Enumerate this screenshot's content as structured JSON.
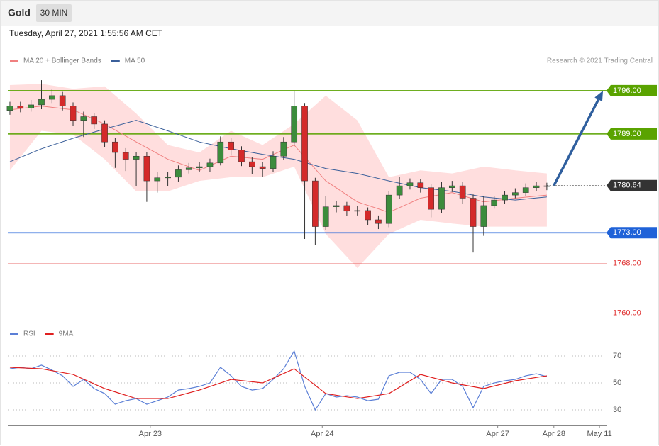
{
  "chart_data": [
    {
      "type": "candlestick",
      "title": "Gold",
      "timeframe": "30 MIN",
      "subtitle": "Tuesday, April 27, 2021 1:55:56 AM CET",
      "source": "Research © 2021 Trading Central",
      "x": [
        0,
        3,
        6,
        9,
        12,
        15,
        18,
        21,
        24,
        27,
        30,
        33,
        36,
        39,
        42,
        45,
        48,
        51,
        54,
        57,
        60,
        63,
        66,
        69,
        72,
        75,
        78,
        81,
        84,
        87,
        90,
        93,
        96,
        99,
        102,
        105,
        108,
        111,
        114,
        117,
        120,
        123,
        126,
        129,
        132,
        135,
        138,
        141,
        144,
        147,
        150,
        153
      ],
      "open": [
        1792.8,
        1793.5,
        1793.2,
        1793.7,
        1794.6,
        1795.2,
        1793.5,
        1791.2,
        1791.8,
        1790.6,
        1787.7,
        1786.0,
        1784.9,
        1785.4,
        1781.4,
        1781.9,
        1782.0,
        1783.2,
        1783.5,
        1783.7,
        1784.3,
        1787.7,
        1786.4,
        1784.5,
        1783.7,
        1783.4,
        1785.4,
        1787.7,
        1793.5,
        1781.4,
        1774.0,
        1777.2,
        1777.4,
        1776.5,
        1776.6,
        1775.1,
        1774.5,
        1779.1,
        1780.6,
        1781.1,
        1780.3,
        1776.8,
        1780.3,
        1780.6,
        1778.6,
        1774.0,
        1777.4,
        1778.3,
        1779.1,
        1779.5,
        1780.3,
        1780.6
      ],
      "high": [
        1794.2,
        1794.2,
        1794.5,
        1797.7,
        1796.2,
        1795.8,
        1794.1,
        1792.6,
        1792.4,
        1791.2,
        1788.3,
        1786.7,
        1786.1,
        1786.0,
        1782.8,
        1782.9,
        1783.9,
        1784.3,
        1784.4,
        1785.0,
        1788.6,
        1788.3,
        1787.0,
        1785.2,
        1784.4,
        1786.2,
        1788.5,
        1796.0,
        1794.0,
        1781.9,
        1778.9,
        1778.2,
        1778.0,
        1777.3,
        1777.1,
        1775.8,
        1779.8,
        1782.0,
        1781.8,
        1781.7,
        1780.9,
        1781.2,
        1781.4,
        1781.2,
        1779.2,
        1779.0,
        1779.0,
        1779.8,
        1780.2,
        1781.0,
        1781.2,
        1781.1
      ],
      "low": [
        1792.1,
        1792.5,
        1792.6,
        1793.0,
        1794.0,
        1792.8,
        1790.3,
        1788.5,
        1789.8,
        1786.9,
        1783.5,
        1783.0,
        1780.5,
        1778.0,
        1779.5,
        1780.6,
        1781.3,
        1782.6,
        1782.8,
        1782.9,
        1783.9,
        1785.6,
        1783.8,
        1782.5,
        1782.1,
        1782.9,
        1784.8,
        1787.1,
        1772.0,
        1771.0,
        1773.4,
        1776.3,
        1775.7,
        1775.8,
        1774.2,
        1773.6,
        1773.9,
        1778.5,
        1780.0,
        1779.5,
        1775.5,
        1776.2,
        1779.6,
        1777.7,
        1769.8,
        1772.5,
        1776.9,
        1777.7,
        1778.6,
        1778.9,
        1779.8,
        1779.9
      ],
      "close": [
        1793.5,
        1793.2,
        1793.7,
        1794.6,
        1795.2,
        1793.5,
        1791.2,
        1791.8,
        1790.6,
        1787.7,
        1786.0,
        1784.9,
        1785.4,
        1781.4,
        1781.9,
        1782.0,
        1783.2,
        1783.5,
        1783.7,
        1784.3,
        1787.7,
        1786.4,
        1784.5,
        1783.7,
        1783.4,
        1785.4,
        1787.7,
        1793.5,
        1781.4,
        1774.0,
        1777.2,
        1777.4,
        1776.5,
        1776.6,
        1775.1,
        1774.5,
        1779.1,
        1780.6,
        1781.1,
        1780.3,
        1776.8,
        1780.3,
        1780.6,
        1778.6,
        1774.0,
        1777.4,
        1778.3,
        1779.1,
        1779.5,
        1780.3,
        1780.6,
        1780.6
      ],
      "up_color": "#3c8c3c",
      "down_color": "#d42a2a",
      "overlay_x": [
        0,
        9,
        18,
        27,
        36,
        45,
        54,
        63,
        72,
        81,
        90,
        99,
        108,
        117,
        126,
        135,
        144,
        153
      ],
      "overlays": [
        {
          "name": "MA 20 + Bollinger Bands",
          "color": "#f08080",
          "band_color": "#ffdede",
          "values": [
            1792.9,
            1793.5,
            1792.9,
            1790.6,
            1787.7,
            1784.9,
            1783.1,
            1785.4,
            1784.9,
            1787.2,
            1781.4,
            1778.0,
            1776.3,
            1778.6,
            1779.5,
            1778.0,
            1778.6,
            1779.1
          ],
          "upper": [
            1796.9,
            1797.1,
            1796.3,
            1796.7,
            1792.3,
            1787.2,
            1786.0,
            1789.5,
            1787.2,
            1790.6,
            1795.2,
            1791.2,
            1782.0,
            1783.1,
            1782.6,
            1783.7,
            1783.1,
            1782.6
          ],
          "lower": [
            1783.1,
            1789.5,
            1788.9,
            1784.9,
            1779.7,
            1779.7,
            1781.4,
            1782.0,
            1782.0,
            1783.7,
            1772.8,
            1767.3,
            1772.8,
            1775.1,
            1774.5,
            1774.0,
            1774.0,
            1774.0
          ]
        },
        {
          "name": "MA 50",
          "color": "#3a5f9a",
          "values": [
            1784.5,
            1786.6,
            1788.3,
            1789.8,
            1791.2,
            1789.5,
            1787.7,
            1786.6,
            1785.7,
            1784.9,
            1783.4,
            1782.6,
            1781.4,
            1780.3,
            1779.7,
            1778.8,
            1778.3,
            1778.8
          ]
        }
      ],
      "levels": [
        {
          "value": 1796,
          "label": "1796.00",
          "color": "#5aa300",
          "tag": true,
          "line": "solid"
        },
        {
          "value": 1789,
          "label": "1789.00",
          "color": "#5aa300",
          "tag": true,
          "line": "solid"
        },
        {
          "value": 1780.64,
          "label": "1780.64",
          "color": "#333333",
          "tag": true,
          "line": "dotted"
        },
        {
          "value": 1773,
          "label": "1773.00",
          "color": "#1f62d8",
          "tag": true,
          "line": "solid"
        },
        {
          "value": 1768,
          "label": "1768.00",
          "color": "#e03030",
          "tag": false,
          "line": "thin"
        },
        {
          "value": 1760,
          "label": "1760.00",
          "color": "#e03030",
          "tag": false,
          "line": "thin"
        }
      ],
      "arrow": {
        "x": [
          155,
          169
        ],
        "y": [
          1780.64,
          1796
        ],
        "color": "#2f5f9e"
      },
      "xlim": [
        -0.6,
        170
      ],
      "ylim": [
        1758.8,
        1799.2
      ]
    },
    {
      "type": "line",
      "series": [
        {
          "name": "RSI",
          "color": "#5b7fd6",
          "x": [
            0,
            3,
            6,
            9,
            12,
            15,
            18,
            21,
            24,
            27,
            30,
            33,
            36,
            39,
            42,
            45,
            48,
            51,
            54,
            57,
            60,
            63,
            66,
            69,
            72,
            75,
            78,
            81,
            84,
            87,
            90,
            93,
            96,
            99,
            102,
            105,
            108,
            111,
            114,
            117,
            120,
            123,
            126,
            129,
            132,
            135,
            138,
            141,
            144,
            147,
            150,
            153
          ],
          "values": [
            60.5,
            61.6,
            60.5,
            63.2,
            59.5,
            55.3,
            47.4,
            52.6,
            45.8,
            42.1,
            34.2,
            36.8,
            38.4,
            34.2,
            36.8,
            39.5,
            44.7,
            45.8,
            47.4,
            50,
            61.6,
            55.3,
            47.4,
            44.7,
            45.8,
            52.6,
            60.5,
            73.7,
            47.4,
            30,
            42.1,
            39.5,
            40.5,
            39.5,
            36.8,
            37.9,
            55.3,
            57.9,
            57.9,
            52.6,
            42.1,
            52.6,
            52.6,
            47.4,
            31.6,
            47.4,
            50,
            51.6,
            52.6,
            55.3,
            56.8,
            54.7
          ]
        },
        {
          "name": "9MA",
          "color": "#e02020",
          "x": [
            0,
            9,
            18,
            27,
            36,
            45,
            54,
            63,
            72,
            81,
            90,
            99,
            108,
            117,
            126,
            135,
            144,
            153
          ],
          "values": [
            61.6,
            60.5,
            56.3,
            45.8,
            38.4,
            38.4,
            44.7,
            52.6,
            50,
            60.5,
            42.1,
            38.4,
            42.1,
            56.3,
            50,
            45.8,
            51.6,
            55.3
          ]
        }
      ],
      "xlim": [
        -0.6,
        170
      ],
      "ylim": [
        19.5,
        92.1
      ],
      "yticks": [
        30,
        50,
        70
      ],
      "grid": true,
      "xticks": [
        {
          "value": 40,
          "label": "Apr 23"
        },
        {
          "value": 89,
          "label": "Apr 24"
        },
        {
          "value": 139,
          "label": "Apr 27"
        },
        {
          "value": 155,
          "label": "Apr 28"
        },
        {
          "value": 168,
          "label": "May 11"
        }
      ]
    }
  ]
}
